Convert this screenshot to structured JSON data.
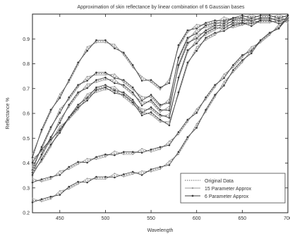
{
  "chart_data": {
    "type": "line",
    "title": "Approximation of skin reflectance by linear combination of 6 Gaussian bases",
    "xlabel": "Wavelength",
    "ylabel": "Reflectance %",
    "xlim": [
      420,
      700
    ],
    "ylim": [
      0.2,
      1.0
    ],
    "xticks": [
      450,
      500,
      550,
      600,
      650,
      700
    ],
    "yticks": [
      0.2,
      0.3,
      0.4,
      0.5,
      0.6,
      0.7,
      0.8,
      0.9
    ],
    "x": [
      420,
      430,
      440,
      450,
      460,
      470,
      480,
      490,
      500,
      510,
      520,
      530,
      540,
      550,
      560,
      570,
      580,
      590,
      600,
      610,
      620,
      630,
      640,
      650,
      660,
      670,
      680,
      690,
      700
    ],
    "grid": false,
    "legend_position": "bottom-right",
    "legend": [
      "Original Data",
      "15 Parameter Approx",
      "6 Parameter Approx"
    ],
    "samples": [
      {
        "values": [
          0.43,
          0.53,
          0.61,
          0.67,
          0.73,
          0.8,
          0.86,
          0.89,
          0.89,
          0.87,
          0.84,
          0.79,
          0.74,
          0.73,
          0.7,
          0.73,
          0.87,
          0.93,
          0.95,
          0.96,
          0.97,
          0.98,
          0.98,
          0.99,
          0.99,
          0.99,
          0.99,
          0.99,
          0.99
        ]
      },
      {
        "values": [
          0.38,
          0.46,
          0.54,
          0.61,
          0.66,
          0.71,
          0.74,
          0.76,
          0.76,
          0.75,
          0.73,
          0.7,
          0.66,
          0.67,
          0.63,
          0.65,
          0.82,
          0.9,
          0.93,
          0.95,
          0.96,
          0.97,
          0.98,
          0.98,
          0.98,
          0.98,
          0.98,
          0.98,
          0.98
        ]
      },
      {
        "values": [
          0.37,
          0.43,
          0.5,
          0.57,
          0.63,
          0.68,
          0.71,
          0.73,
          0.74,
          0.73,
          0.71,
          0.68,
          0.64,
          0.65,
          0.61,
          0.62,
          0.79,
          0.88,
          0.91,
          0.93,
          0.95,
          0.96,
          0.97,
          0.97,
          0.98,
          0.98,
          0.98,
          0.98,
          0.98
        ]
      },
      {
        "values": [
          0.36,
          0.41,
          0.47,
          0.53,
          0.58,
          0.63,
          0.67,
          0.7,
          0.71,
          0.7,
          0.68,
          0.65,
          0.61,
          0.62,
          0.59,
          0.59,
          0.74,
          0.85,
          0.89,
          0.92,
          0.94,
          0.95,
          0.96,
          0.96,
          0.97,
          0.97,
          0.97,
          0.97,
          0.97
        ]
      },
      {
        "values": [
          0.41,
          0.45,
          0.49,
          0.54,
          0.58,
          0.62,
          0.66,
          0.69,
          0.7,
          0.69,
          0.67,
          0.64,
          0.6,
          0.6,
          0.57,
          0.56,
          0.68,
          0.8,
          0.86,
          0.9,
          0.92,
          0.94,
          0.95,
          0.96,
          0.96,
          0.97,
          0.97,
          0.97,
          0.97
        ]
      },
      {
        "values": [
          0.33,
          0.33,
          0.34,
          0.36,
          0.38,
          0.4,
          0.41,
          0.42,
          0.43,
          0.44,
          0.44,
          0.44,
          0.45,
          0.45,
          0.46,
          0.48,
          0.52,
          0.57,
          0.61,
          0.66,
          0.71,
          0.75,
          0.79,
          0.83,
          0.86,
          0.89,
          0.92,
          0.95,
          0.98
        ]
      },
      {
        "values": [
          0.25,
          0.25,
          0.26,
          0.28,
          0.3,
          0.32,
          0.33,
          0.34,
          0.34,
          0.35,
          0.35,
          0.36,
          0.36,
          0.37,
          0.38,
          0.4,
          0.44,
          0.5,
          0.55,
          0.61,
          0.67,
          0.72,
          0.77,
          0.81,
          0.85,
          0.89,
          0.92,
          0.95,
          0.99
        ]
      }
    ]
  },
  "style": {
    "original_color": "#6a6a6a",
    "approx15_color": "#9a9a9a",
    "approx6_color": "#3c3c3c",
    "axis_color": "#222222"
  }
}
